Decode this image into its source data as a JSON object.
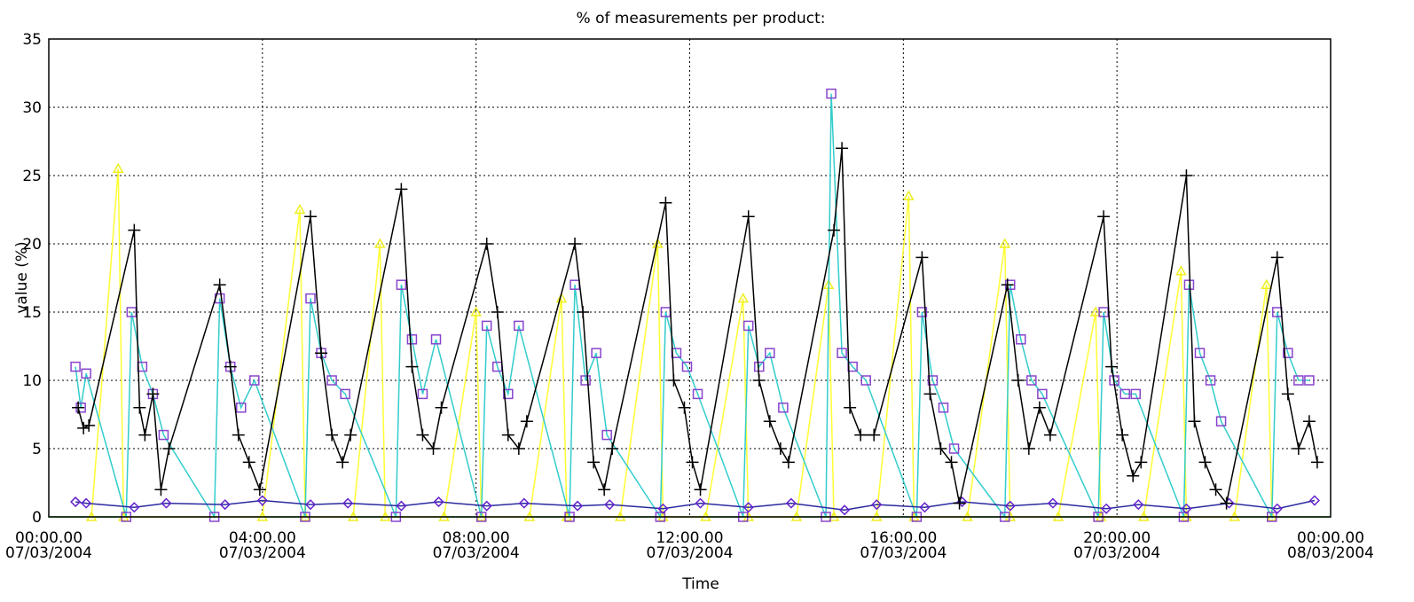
{
  "chart_data": {
    "type": "line",
    "title": "% of measurements per product:",
    "xlabel": "Time",
    "ylabel": "value (%)",
    "xlim": [
      0,
      24
    ],
    "ylim": [
      0,
      35
    ],
    "xticks": [
      {
        "value": 0,
        "label": "00:00.00\n07/03/2004"
      },
      {
        "value": 4,
        "label": "04:00.00\n07/03/2004"
      },
      {
        "value": 8,
        "label": "08:00.00\n07/03/2004"
      },
      {
        "value": 12,
        "label": "12:00.00\n07/03/2004"
      },
      {
        "value": 16,
        "label": "16:00.00\n07/03/2004"
      },
      {
        "value": 20,
        "label": "20:00.00\n07/03/2004"
      },
      {
        "value": 24,
        "label": "00:00.00\n08/03/2004"
      }
    ],
    "yticks": [
      0,
      5,
      10,
      15,
      20,
      25,
      30,
      35
    ],
    "grid": true,
    "series": [
      {
        "color": "#22cc22",
        "marker": "none",
        "x": [
          0,
          24
        ],
        "values": [
          0,
          0
        ]
      },
      {
        "color": "#ffff33",
        "marker": "triangle",
        "x": [
          0.8,
          1.3,
          1.4,
          4.0,
          4.7,
          4.8,
          5.7,
          6.2,
          6.3,
          7.4,
          8.0,
          8.1,
          9.0,
          9.6,
          9.7,
          10.7,
          11.4,
          11.5,
          12.3,
          13.0,
          13.1,
          14.0,
          14.6,
          14.7,
          15.5,
          16.1,
          16.2,
          17.2,
          17.9,
          18.0,
          18.9,
          19.6,
          19.7,
          20.5,
          21.2,
          21.3,
          22.2,
          22.8,
          22.9
        ],
        "values": [
          0,
          25.5,
          0,
          0,
          22.5,
          0,
          0,
          20,
          0,
          0,
          15,
          0,
          0,
          16,
          0,
          0,
          20,
          0,
          0,
          16,
          0,
          0,
          17,
          0,
          0,
          23.5,
          0,
          0,
          20,
          0,
          0,
          15,
          0,
          0,
          18,
          0,
          0,
          17,
          0
        ]
      },
      {
        "color": "#33cccc",
        "marker": "square",
        "x": [
          0.5,
          0.6,
          0.7,
          1.45,
          1.55,
          1.75,
          1.95,
          2.15,
          3.1,
          3.2,
          3.4,
          3.6,
          3.85,
          4.8,
          4.9,
          5.1,
          5.3,
          5.55,
          6.5,
          6.6,
          6.8,
          7.0,
          7.25,
          8.1,
          8.2,
          8.4,
          8.6,
          8.8,
          9.75,
          9.85,
          10.05,
          10.25,
          10.45,
          11.45,
          11.55,
          11.75,
          11.95,
          12.15,
          13.0,
          13.1,
          13.3,
          13.5,
          13.75,
          14.55,
          14.65,
          14.85,
          15.05,
          15.3,
          16.25,
          16.35,
          16.55,
          16.75,
          16.95,
          17.9,
          18.0,
          18.2,
          18.4,
          18.6,
          19.65,
          19.75,
          19.95,
          20.15,
          20.35,
          21.25,
          21.35,
          21.55,
          21.75,
          21.95,
          22.9,
          23.0,
          23.2,
          23.4,
          23.6
        ],
        "values": [
          11,
          8,
          10.5,
          0,
          15,
          11,
          9,
          6,
          0,
          16,
          11,
          8,
          10,
          0,
          16,
          12,
          10,
          9,
          0,
          17,
          13,
          9,
          13,
          0,
          14,
          11,
          9,
          14,
          0,
          17,
          10,
          12,
          6,
          0,
          15,
          12,
          11,
          9,
          0,
          14,
          11,
          12,
          8,
          0,
          31,
          12,
          11,
          10,
          0,
          15,
          10,
          8,
          5,
          0,
          17,
          13,
          10,
          9,
          0,
          15,
          10,
          9,
          9,
          0,
          17,
          12,
          10,
          7,
          0,
          15,
          12,
          10,
          10
        ]
      },
      {
        "color": "#2a2aa0",
        "marker": "diamond",
        "x": [
          0.5,
          0.7,
          1.6,
          2.2,
          3.3,
          4.0,
          4.9,
          5.6,
          6.6,
          7.3,
          8.2,
          8.9,
          9.9,
          10.5,
          11.5,
          12.2,
          13.1,
          13.9,
          14.9,
          15.5,
          16.4,
          17.1,
          18.0,
          18.8,
          19.8,
          20.4,
          21.3,
          22.1,
          23.0,
          23.7
        ],
        "values": [
          1.1,
          1,
          0.7,
          1,
          0.9,
          1.2,
          0.9,
          1,
          0.8,
          1.1,
          0.8,
          1,
          0.8,
          0.9,
          0.6,
          1,
          0.7,
          1,
          0.5,
          0.9,
          0.7,
          1.1,
          0.8,
          1,
          0.6,
          0.9,
          0.6,
          1,
          0.6,
          1.2
        ]
      },
      {
        "color": "#000000",
        "marker": "plus",
        "x": [
          0.55,
          0.65,
          0.75,
          1.6,
          1.7,
          1.8,
          1.95,
          2.1,
          2.25,
          3.2,
          3.4,
          3.55,
          3.75,
          3.95,
          4.9,
          5.1,
          5.3,
          5.5,
          5.65,
          6.6,
          6.8,
          7.0,
          7.2,
          7.35,
          8.2,
          8.4,
          8.6,
          8.8,
          8.95,
          9.85,
          10.0,
          10.2,
          10.4,
          10.55,
          11.55,
          11.7,
          11.9,
          12.05,
          12.2,
          13.1,
          13.3,
          13.5,
          13.7,
          13.85,
          14.7,
          14.85,
          15.0,
          15.2,
          15.45,
          16.35,
          16.5,
          16.7,
          16.9,
          17.05,
          17.95,
          18.15,
          18.35,
          18.55,
          18.75,
          19.75,
          19.9,
          20.1,
          20.3,
          20.45,
          21.3,
          21.45,
          21.65,
          21.85,
          22.05,
          23.0,
          23.2,
          23.4,
          23.6,
          23.75
        ],
        "values": [
          8,
          6.5,
          6.7,
          21,
          8,
          6,
          9,
          2,
          5,
          17,
          11,
          6,
          4,
          2,
          22,
          12,
          6,
          4,
          6,
          24,
          11,
          6,
          5,
          8,
          20,
          15,
          6,
          5,
          7,
          20,
          15,
          4,
          2,
          5,
          23,
          10,
          8,
          4,
          2,
          22,
          10,
          7,
          5,
          4,
          21,
          27,
          8,
          6,
          6,
          19,
          9,
          5,
          4,
          1,
          17,
          10,
          5,
          8,
          6,
          22,
          11,
          6,
          3,
          4,
          25,
          7,
          4,
          2,
          1,
          19,
          9,
          5,
          7,
          4
        ]
      }
    ]
  }
}
